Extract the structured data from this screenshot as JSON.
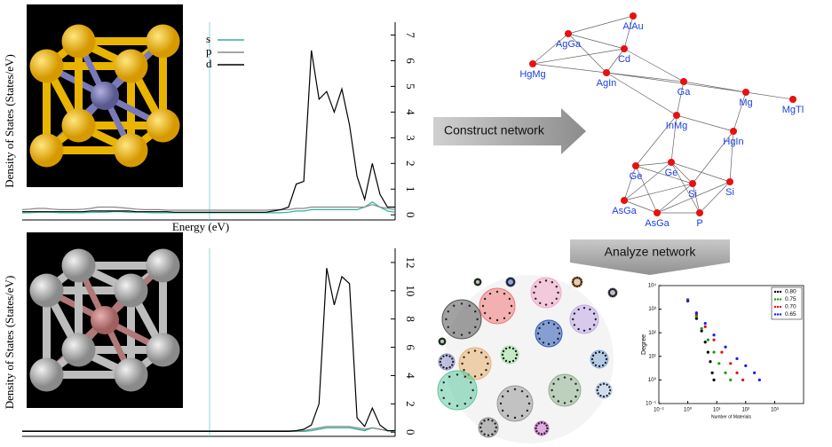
{
  "dos_plots": [
    {
      "y_label": "Density of States (States/eV)",
      "x_label": "Energy (eV)",
      "ylim": [
        -0.2,
        7.5
      ],
      "yticks": [
        0,
        1,
        2,
        3,
        4,
        5,
        6,
        7
      ],
      "series": [
        {
          "name": "s",
          "color": "#2bb39a",
          "values": [
            0.08,
            0.08,
            0.1,
            0.1,
            0.1,
            0.08,
            0.08,
            0.08,
            0.08,
            0.1,
            0.1,
            0.1,
            0.12,
            0.12,
            0.1,
            0.1,
            0.1,
            0.08,
            0.08,
            0.08,
            0.08,
            0.08,
            0.08,
            0.08,
            0.08,
            0.08,
            0.08,
            0.08,
            0.08,
            0.08,
            0.08,
            0.08,
            0.08,
            0.08,
            0.08,
            0.1,
            0.15,
            0.15,
            0.2,
            0.2,
            0.2,
            0.2,
            0.2,
            0.2,
            0.2,
            0.3,
            0.5,
            0.3,
            0.15,
            0.1
          ]
        },
        {
          "name": "p",
          "color": "#888888",
          "values": [
            0.2,
            0.22,
            0.25,
            0.25,
            0.22,
            0.2,
            0.2,
            0.2,
            0.22,
            0.25,
            0.3,
            0.3,
            0.3,
            0.28,
            0.25,
            0.22,
            0.2,
            0.2,
            0.2,
            0.18,
            0.18,
            0.18,
            0.18,
            0.18,
            0.18,
            0.18,
            0.18,
            0.18,
            0.18,
            0.18,
            0.18,
            0.18,
            0.18,
            0.2,
            0.2,
            0.2,
            0.25,
            0.25,
            0.3,
            0.3,
            0.3,
            0.3,
            0.3,
            0.3,
            0.3,
            0.3,
            0.4,
            0.3,
            0.25,
            0.2
          ]
        },
        {
          "name": "d",
          "color": "#000000",
          "values": [
            0.12,
            0.12,
            0.12,
            0.12,
            0.12,
            0.12,
            0.12,
            0.12,
            0.12,
            0.15,
            0.15,
            0.15,
            0.15,
            0.15,
            0.15,
            0.12,
            0.12,
            0.12,
            0.12,
            0.12,
            0.1,
            0.1,
            0.1,
            0.1,
            0.1,
            0.1,
            0.1,
            0.1,
            0.1,
            0.1,
            0.1,
            0.1,
            0.1,
            0.15,
            0.2,
            0.3,
            1.2,
            1.3,
            6.4,
            4.5,
            4.8,
            4.0,
            4.9,
            3.5,
            1.5,
            0.6,
            2.0,
            0.8,
            0.3,
            0.3
          ]
        }
      ]
    },
    {
      "y_label": "Density of States (States/eV)",
      "ylim": [
        -0.3,
        13
      ],
      "yticks": [
        0,
        2,
        4,
        6,
        8,
        10,
        12
      ],
      "series": [
        {
          "color": "#2bb39a",
          "values": [
            0.05,
            0.05,
            0.05,
            0.05,
            0.05,
            0.05,
            0.05,
            0.05,
            0.05,
            0.05,
            0.05,
            0.05,
            0.05,
            0.05,
            0.05,
            0.05,
            0.05,
            0.05,
            0.05,
            0.05,
            0.05,
            0.05,
            0.05,
            0.05,
            0.05,
            0.05,
            0.05,
            0.05,
            0.05,
            0.05,
            0.05,
            0.05,
            0.05,
            0.05,
            0.05,
            0.05,
            0.05,
            0.05,
            0.1,
            0.2,
            0.3,
            0.3,
            0.3,
            0.3,
            0.2,
            0.1,
            0.3,
            0.2,
            0.1,
            0.05
          ]
        },
        {
          "color": "#888888",
          "values": [
            0.1,
            0.1,
            0.1,
            0.1,
            0.1,
            0.1,
            0.1,
            0.1,
            0.1,
            0.1,
            0.1,
            0.1,
            0.1,
            0.1,
            0.1,
            0.1,
            0.1,
            0.1,
            0.1,
            0.1,
            0.1,
            0.1,
            0.1,
            0.1,
            0.1,
            0.1,
            0.1,
            0.1,
            0.1,
            0.1,
            0.1,
            0.1,
            0.1,
            0.1,
            0.1,
            0.1,
            0.1,
            0.1,
            0.2,
            0.3,
            0.4,
            0.4,
            0.4,
            0.4,
            0.3,
            0.2,
            0.3,
            0.2,
            0.1,
            0.1
          ]
        },
        {
          "color": "#000000",
          "values": [
            0.05,
            0.05,
            0.05,
            0.05,
            0.05,
            0.05,
            0.05,
            0.05,
            0.05,
            0.05,
            0.05,
            0.05,
            0.05,
            0.05,
            0.05,
            0.05,
            0.05,
            0.05,
            0.05,
            0.05,
            0.05,
            0.05,
            0.05,
            0.05,
            0.05,
            0.05,
            0.05,
            0.05,
            0.05,
            0.05,
            0.05,
            0.05,
            0.05,
            0.05,
            0.05,
            0.05,
            0.1,
            0.2,
            0.5,
            2.0,
            11.6,
            9.0,
            11.0,
            10.5,
            1.0,
            0.4,
            1.7,
            0.5,
            0.1,
            0.1
          ]
        }
      ]
    }
  ],
  "arrows": {
    "construct": "Construct network",
    "analyze": "Analyze network"
  },
  "network": {
    "nodes": [
      "AlAu",
      "AgGa",
      "Cd",
      "HgMg",
      "AgIn",
      "Ga",
      "Mg",
      "MgTl",
      "InMg",
      "HgIn",
      "Ge",
      "Ge",
      "Si",
      "Si",
      "AsGa",
      "AsGa",
      "P"
    ]
  },
  "degree_plot": {
    "y_label": "Degree",
    "x_label": "Number of Materials",
    "log_scale": true,
    "legend": "upper right",
    "xlim": [
      0.1,
      10000
    ],
    "xticks": [
      {
        "value": 0.1,
        "label": "10⁻¹"
      },
      {
        "value": 1,
        "label": "10⁰"
      },
      {
        "value": 10,
        "label": "10¹"
      },
      {
        "value": 100,
        "label": "10²"
      },
      {
        "value": 1000,
        "label": "10³"
      }
    ],
    "ylim": [
      0.1,
      10000
    ],
    "yticks": [
      {
        "value": 0.1,
        "label": "10⁻¹"
      },
      {
        "value": 1,
        "label": "10⁰"
      },
      {
        "value": 10,
        "label": "10¹"
      },
      {
        "value": 100,
        "label": "10²"
      },
      {
        "value": 1000,
        "label": "10³"
      },
      {
        "value": 10000,
        "label": "10⁴"
      }
    ],
    "series": [
      {
        "name": "0.80",
        "color": "#000000",
        "x": [
          1,
          2,
          3,
          4,
          5,
          6,
          7,
          8
        ],
        "y": [
          2500,
          400,
          120,
          40,
          15,
          6,
          2,
          1
        ]
      },
      {
        "name": "0.75",
        "color": "#1a9a1a",
        "x": [
          1,
          2,
          3,
          5,
          8,
          12,
          20,
          30
        ],
        "y": [
          2400,
          500,
          150,
          50,
          15,
          5,
          2,
          1
        ]
      },
      {
        "name": "0.70",
        "color": "#e01010",
        "x": [
          1,
          2,
          4,
          8,
          15,
          30,
          50,
          80
        ],
        "y": [
          2300,
          600,
          180,
          50,
          15,
          5,
          2,
          1
        ]
      },
      {
        "name": "0.65",
        "color": "#1a1aee",
        "x": [
          1,
          2,
          4,
          8,
          20,
          50,
          100,
          200,
          300
        ],
        "y": [
          2200,
          700,
          250,
          80,
          25,
          8,
          4,
          2,
          1
        ]
      }
    ]
  }
}
